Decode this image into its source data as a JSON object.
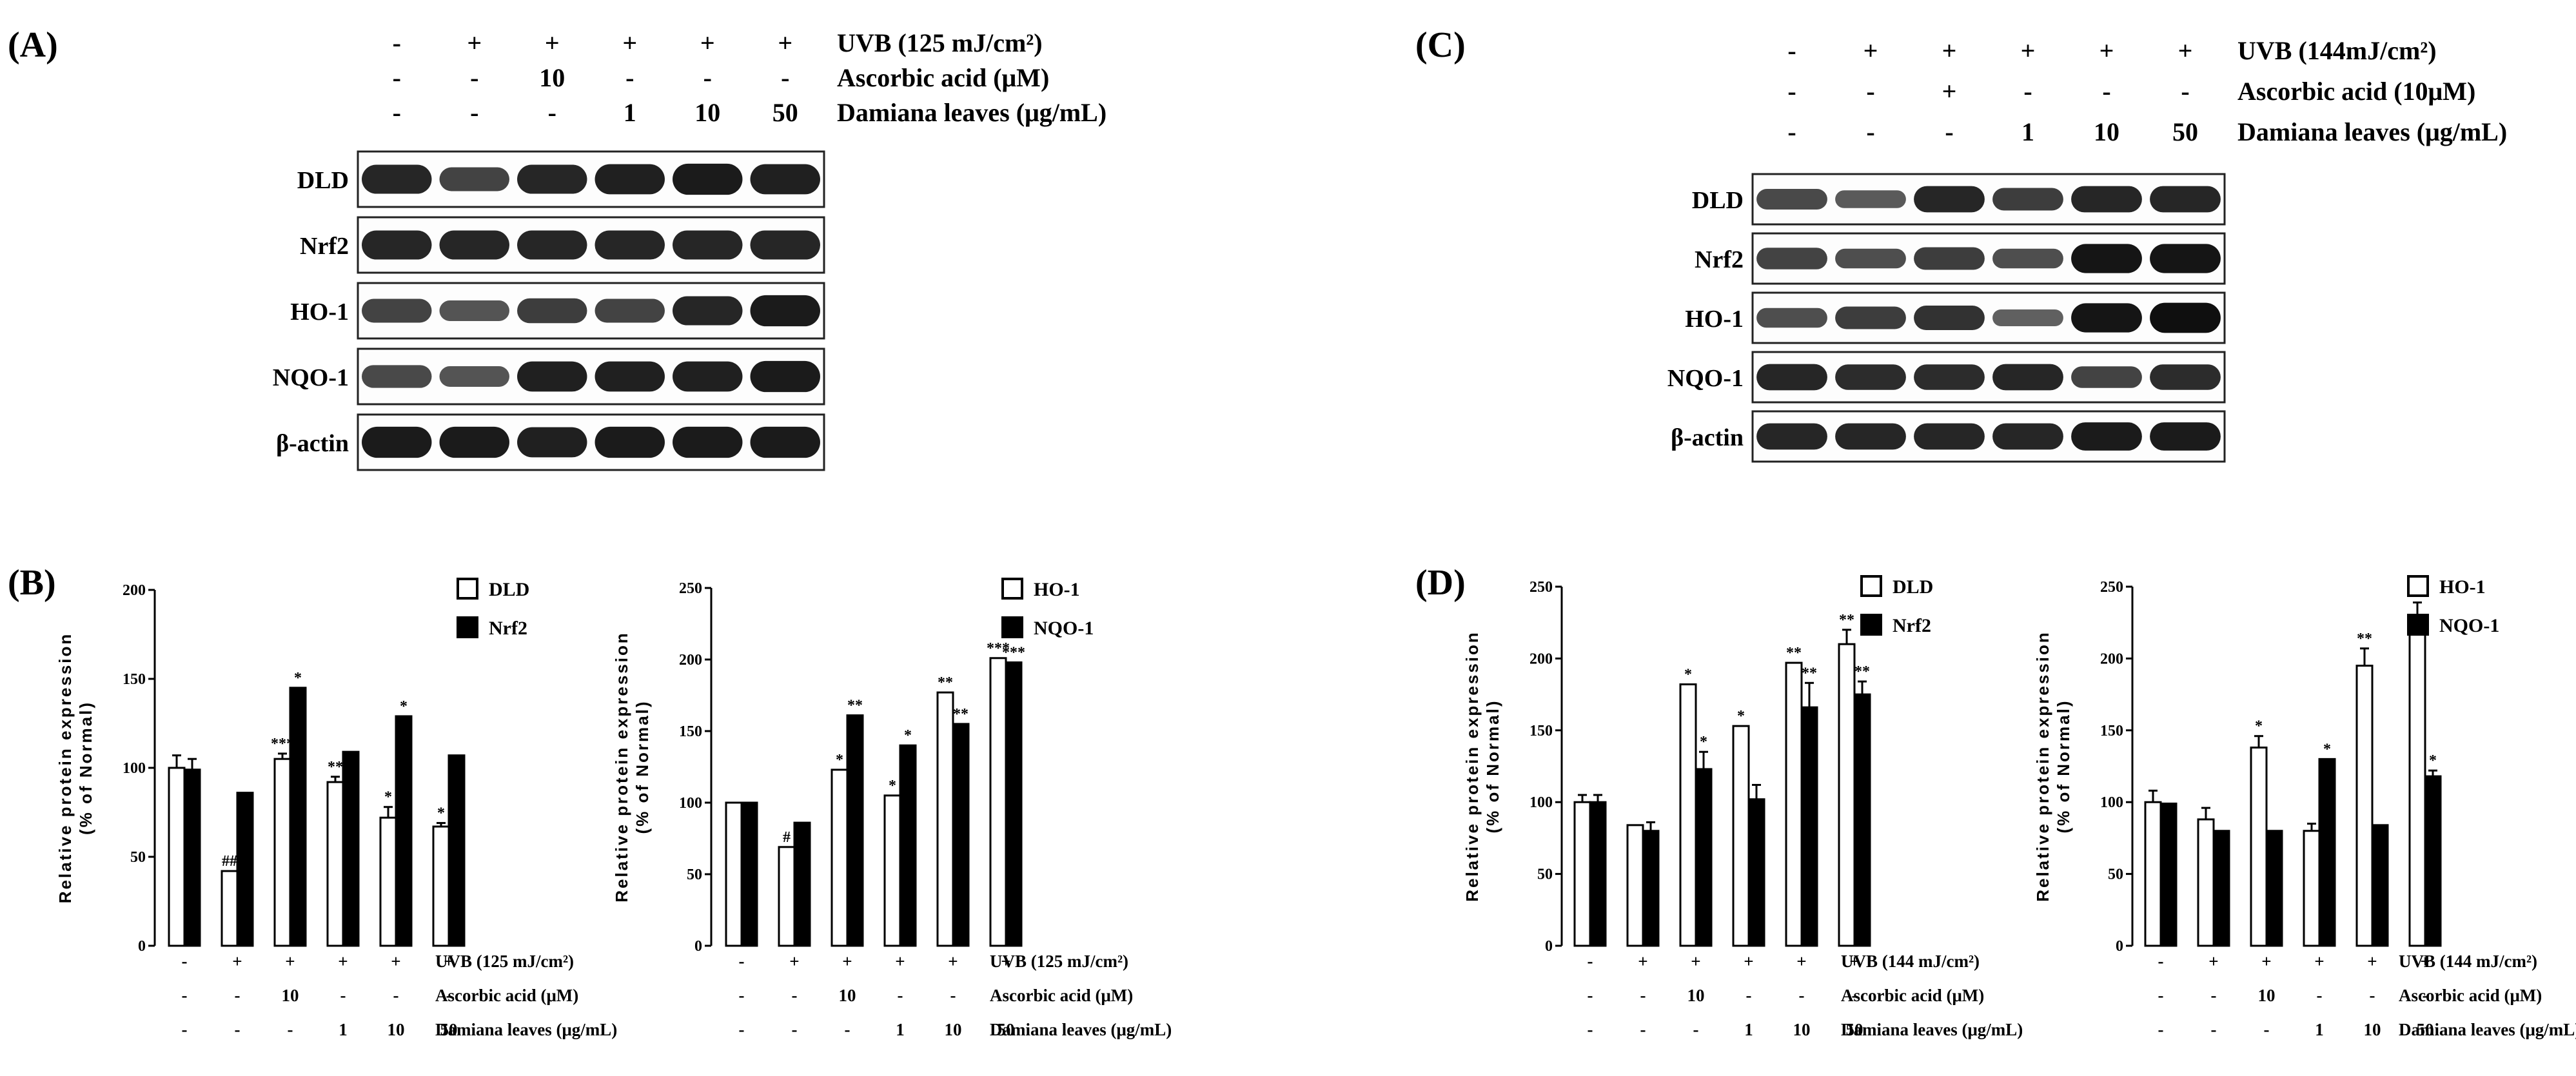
{
  "panels": {
    "A": "(A)",
    "B": "(B)",
    "C": "(C)",
    "D": "(D)"
  },
  "blot_A": {
    "conditions": [
      {
        "label": "UVB (125 mJ/cm²)",
        "values": [
          "-",
          "+",
          "+",
          "+",
          "+",
          "+"
        ]
      },
      {
        "label": "Ascorbic acid (μM)",
        "values": [
          "-",
          "-",
          "10",
          "-",
          "-",
          "-"
        ]
      },
      {
        "label": "Damiana leaves (μg/mL)",
        "values": [
          "-",
          "-",
          "-",
          "1",
          "10",
          "50"
        ]
      }
    ],
    "proteins": [
      "DLD",
      "Nrf2",
      "HO-1",
      "NQO-1",
      "β-actin"
    ],
    "band_intensity": [
      [
        0.8,
        0.55,
        0.8,
        0.85,
        0.9,
        0.85
      ],
      [
        0.8,
        0.8,
        0.8,
        0.8,
        0.8,
        0.8
      ],
      [
        0.55,
        0.4,
        0.6,
        0.55,
        0.8,
        0.9
      ],
      [
        0.5,
        0.4,
        0.85,
        0.85,
        0.85,
        0.9
      ],
      [
        0.9,
        0.9,
        0.85,
        0.9,
        0.9,
        0.9
      ]
    ]
  },
  "blot_C": {
    "conditions": [
      {
        "label": "UVB (144mJ/cm²)",
        "values": [
          "-",
          "+",
          "+",
          "+",
          "+",
          "+"
        ]
      },
      {
        "label": "Ascorbic acid (10μM)",
        "values": [
          "-",
          "-",
          "+",
          "-",
          "-",
          "-"
        ]
      },
      {
        "label": "Damiana leaves (μg/mL)",
        "values": [
          "-",
          "-",
          "-",
          "1",
          "10",
          "50"
        ]
      }
    ],
    "proteins": [
      "DLD",
      "Nrf2",
      "HO-1",
      "NQO-1",
      "β-actin"
    ],
    "band_intensity": [
      [
        0.5,
        0.35,
        0.8,
        0.6,
        0.8,
        0.8
      ],
      [
        0.55,
        0.45,
        0.6,
        0.45,
        0.95,
        0.95
      ],
      [
        0.45,
        0.6,
        0.7,
        0.3,
        0.95,
        1.0
      ],
      [
        0.8,
        0.75,
        0.75,
        0.8,
        0.55,
        0.75
      ],
      [
        0.8,
        0.8,
        0.8,
        0.8,
        0.9,
        0.9
      ]
    ]
  },
  "chart_data": [
    {
      "id": "B1",
      "type": "bar",
      "ylabel": "Relative protein expression\n(% of Normal)",
      "ylim": [
        0,
        200
      ],
      "yticks": [
        0,
        50,
        100,
        150,
        200
      ],
      "series": [
        {
          "name": "DLD",
          "values": [
            100,
            42,
            105,
            92,
            72,
            67
          ],
          "errors": [
            7,
            0,
            3,
            3,
            6,
            2
          ],
          "sig": [
            "",
            "##",
            "***",
            "**",
            "*",
            "*"
          ]
        },
        {
          "name": "Nrf2",
          "values": [
            99,
            86,
            145,
            109,
            129,
            107
          ],
          "errors": [
            6,
            0,
            0,
            0,
            0,
            0
          ],
          "sig": [
            "",
            "",
            "*",
            "",
            "*",
            ""
          ]
        }
      ],
      "conditions": [
        {
          "label": "UVB (125 mJ/cm²)",
          "values": [
            "-",
            "+",
            "+",
            "+",
            "+",
            "+"
          ]
        },
        {
          "label": "Ascorbic acid (μM)",
          "values": [
            "-",
            "-",
            "10",
            "-",
            "-",
            "-"
          ]
        },
        {
          "label": "Damiana leaves (μg/mL)",
          "values": [
            "-",
            "-",
            "-",
            "1",
            "10",
            "50"
          ]
        }
      ]
    },
    {
      "id": "B2",
      "type": "bar",
      "ylabel": "Relative protein expression\n(% of Normal)",
      "ylim": [
        0,
        250
      ],
      "yticks": [
        0,
        50,
        100,
        150,
        200,
        250
      ],
      "series": [
        {
          "name": "HO-1",
          "values": [
            100,
            69,
            123,
            105,
            177,
            201
          ],
          "errors": [
            0,
            0,
            0,
            0,
            0,
            0
          ],
          "sig": [
            "",
            "#",
            "*",
            "*",
            "**",
            "***"
          ]
        },
        {
          "name": "NQO-1",
          "values": [
            100,
            86,
            161,
            140,
            155,
            198
          ],
          "errors": [
            0,
            0,
            0,
            0,
            0,
            0
          ],
          "sig": [
            "",
            "",
            "**",
            "*",
            "**",
            "***"
          ]
        }
      ],
      "conditions": [
        {
          "label": "UVB (125 mJ/cm²)",
          "values": [
            "-",
            "+",
            "+",
            "+",
            "+",
            "+"
          ]
        },
        {
          "label": "Ascorbic acid (μM)",
          "values": [
            "-",
            "-",
            "10",
            "-",
            "-",
            "-"
          ]
        },
        {
          "label": "Damiana leaves (μg/mL)",
          "values": [
            "-",
            "-",
            "-",
            "1",
            "10",
            "50"
          ]
        }
      ]
    },
    {
      "id": "D1",
      "type": "bar",
      "ylabel": "Relative protein expression\n(% of Normal)",
      "ylim": [
        0,
        250
      ],
      "yticks": [
        0,
        50,
        100,
        150,
        200,
        250
      ],
      "series": [
        {
          "name": "DLD",
          "values": [
            100,
            84,
            182,
            153,
            197,
            210
          ],
          "errors": [
            5,
            0,
            0,
            0,
            0,
            10
          ],
          "sig": [
            "",
            "",
            "*",
            "*",
            "**",
            "**"
          ]
        },
        {
          "name": "Nrf2",
          "values": [
            100,
            80,
            123,
            102,
            166,
            175
          ],
          "errors": [
            5,
            6,
            12,
            10,
            17,
            9
          ],
          "sig": [
            "",
            "",
            "*",
            "",
            "**",
            "**"
          ]
        }
      ],
      "conditions": [
        {
          "label": "UVB (144 mJ/cm²)",
          "values": [
            "-",
            "+",
            "+",
            "+",
            "+",
            "+"
          ]
        },
        {
          "label": "Ascorbic acid (μM)",
          "values": [
            "-",
            "-",
            "10",
            "-",
            "-",
            "-"
          ]
        },
        {
          "label": "Damiana leaves (μg/mL)",
          "values": [
            "-",
            "-",
            "-",
            "1",
            "10",
            "50"
          ]
        }
      ]
    },
    {
      "id": "D2",
      "type": "bar",
      "ylabel": "Relative protein expression\n(% of Normal)",
      "ylim": [
        0,
        250
      ],
      "yticks": [
        0,
        50,
        100,
        150,
        200,
        250
      ],
      "series": [
        {
          "name": "HO-1",
          "values": [
            100,
            88,
            138,
            80,
            195,
            217
          ],
          "errors": [
            8,
            8,
            8,
            5,
            12,
            22
          ],
          "sig": [
            "",
            "",
            "*",
            "",
            "**",
            "**"
          ]
        },
        {
          "name": "NQO-1",
          "values": [
            99,
            80,
            80,
            130,
            84,
            118
          ],
          "errors": [
            0,
            0,
            0,
            0,
            0,
            4
          ],
          "sig": [
            "",
            "",
            "",
            "*",
            "",
            "*"
          ]
        }
      ],
      "conditions": [
        {
          "label": "UVB (144 mJ/cm²)",
          "values": [
            "-",
            "+",
            "+",
            "+",
            "+",
            "+"
          ]
        },
        {
          "label": "Ascorbic acid (μM)",
          "values": [
            "-",
            "-",
            "10",
            "-",
            "-",
            "-"
          ]
        },
        {
          "label": "Damiana leaves (μg/mL)",
          "values": [
            "-",
            "-",
            "-",
            "1",
            "10",
            "50"
          ]
        }
      ]
    }
  ]
}
